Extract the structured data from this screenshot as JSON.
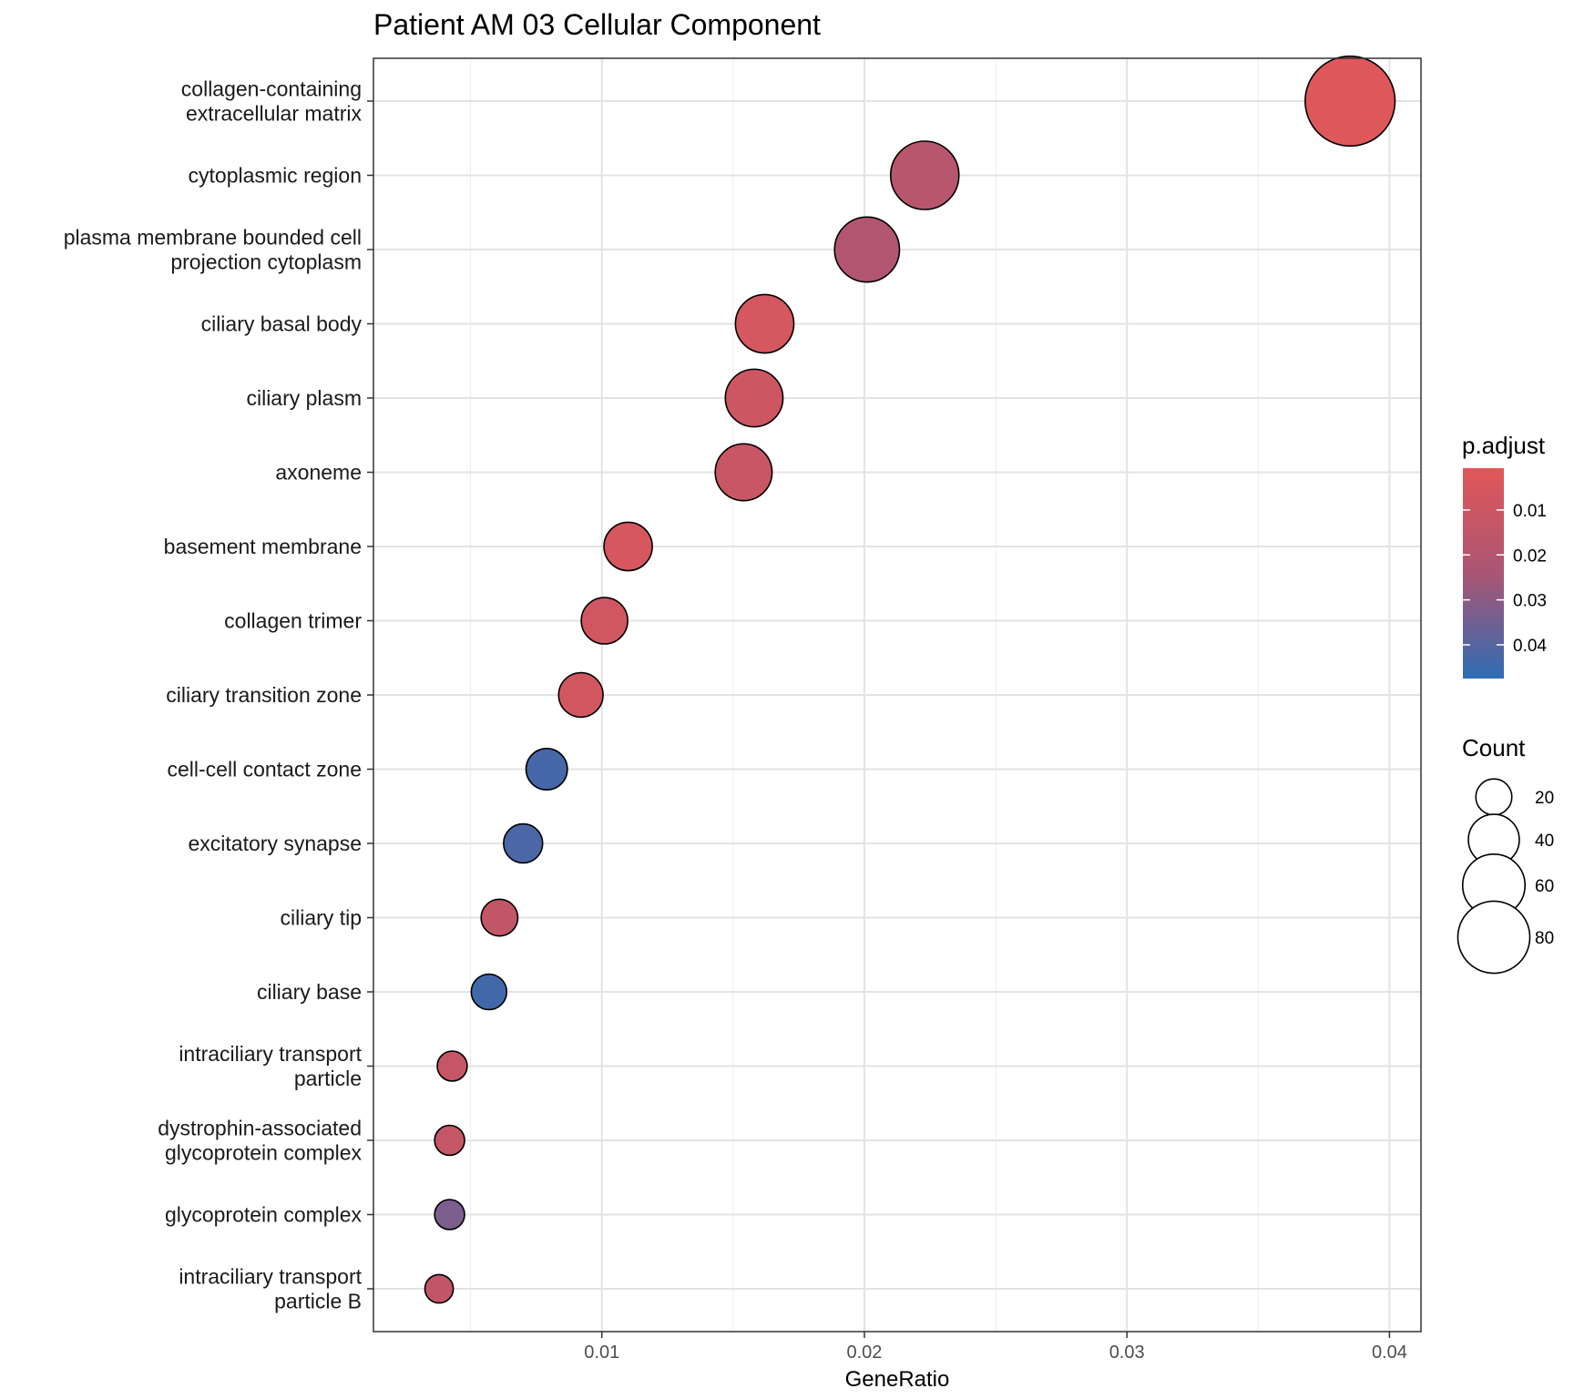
{
  "chart_data": {
    "type": "scatter",
    "title": "Patient AM 03 Cellular Component",
    "xlabel": "GeneRatio",
    "ylabel": "",
    "xlim": [
      0.0013,
      0.0412
    ],
    "x_ticks": [
      "0.01",
      "0.02",
      "0.03",
      "0.04"
    ],
    "x_tick_values": [
      0.01,
      0.02,
      0.03,
      0.04
    ],
    "grid": true,
    "colors": {
      "low": "#E15759",
      "high": "#2E6DB4",
      "panel_border": "#333333",
      "grid": "#e6e6e6"
    },
    "categories": [
      "collagen-containing\nextracellular matrix",
      "cytoplasmic region",
      "plasma membrane bounded cell\nprojection cytoplasm",
      "ciliary basal body",
      "ciliary plasm",
      "axoneme",
      "basement membrane",
      "collagen trimer",
      "ciliary transition zone",
      "cell-cell contact zone",
      "excitatory synapse",
      "ciliary tip",
      "ciliary base",
      "intraciliary transport\nparticle",
      "dystrophin-associated\nglycoprotein complex",
      "glycoprotein complex",
      "intraciliary transport\nparticle B"
    ],
    "points": [
      {
        "x": 0.0385,
        "count": 90,
        "p_adjust": 0.002
      },
      {
        "x": 0.0223,
        "count": 52,
        "p_adjust": 0.018
      },
      {
        "x": 0.0201,
        "count": 47,
        "p_adjust": 0.021
      },
      {
        "x": 0.0162,
        "count": 38,
        "p_adjust": 0.006
      },
      {
        "x": 0.0158,
        "count": 37,
        "p_adjust": 0.009
      },
      {
        "x": 0.0154,
        "count": 36,
        "p_adjust": 0.011
      },
      {
        "x": 0.011,
        "count": 26,
        "p_adjust": 0.005
      },
      {
        "x": 0.0101,
        "count": 24,
        "p_adjust": 0.008
      },
      {
        "x": 0.0092,
        "count": 22,
        "p_adjust": 0.007
      },
      {
        "x": 0.0079,
        "count": 19,
        "p_adjust": 0.043
      },
      {
        "x": 0.007,
        "count": 17,
        "p_adjust": 0.042
      },
      {
        "x": 0.0061,
        "count": 15,
        "p_adjust": 0.014
      },
      {
        "x": 0.0057,
        "count": 14,
        "p_adjust": 0.044
      },
      {
        "x": 0.0043,
        "count": 10,
        "p_adjust": 0.012
      },
      {
        "x": 0.0042,
        "count": 10,
        "p_adjust": 0.013
      },
      {
        "x": 0.0042,
        "count": 10,
        "p_adjust": 0.033
      },
      {
        "x": 0.0038,
        "count": 9,
        "p_adjust": 0.014
      }
    ],
    "legend_color": {
      "title": "p.adjust",
      "placement": "right",
      "range": [
        0.0007,
        0.0475
      ],
      "ticks": [
        "0.01",
        "0.02",
        "0.03",
        "0.04"
      ],
      "tick_values": [
        0.01,
        0.02,
        0.03,
        0.04
      ]
    },
    "legend_size": {
      "title": "Count",
      "placement": "right",
      "labels": [
        "20",
        "40",
        "60",
        "80"
      ],
      "values": [
        20,
        40,
        60,
        80
      ]
    }
  }
}
